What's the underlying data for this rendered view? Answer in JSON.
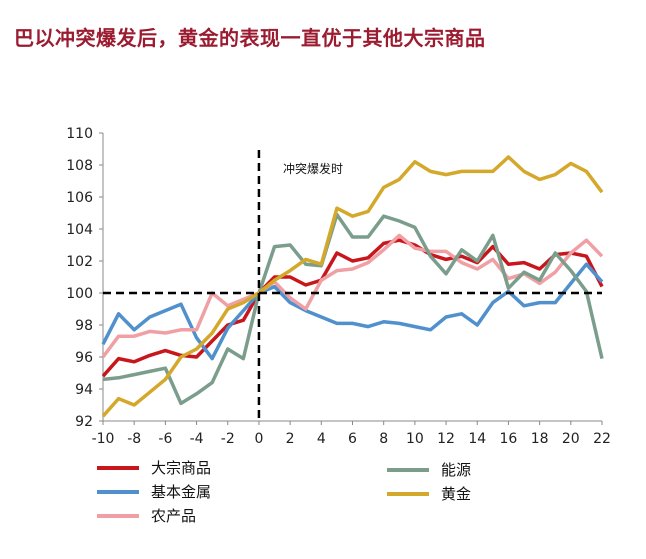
{
  "title": "巴以冲突爆发后，黄金的表现一直优于其他大宗商品",
  "chart_data": {
    "type": "line",
    "title": "巴以冲突爆发后，黄金的表现一直优于其他大宗商品",
    "annotation": "冲突爆发时",
    "x": [
      -10,
      -9,
      -8,
      -7,
      -6,
      -5,
      -4,
      -3,
      -2,
      -1,
      0,
      1,
      2,
      3,
      4,
      5,
      6,
      7,
      8,
      9,
      10,
      11,
      12,
      13,
      14,
      15,
      16,
      17,
      18,
      19,
      20,
      21,
      22
    ],
    "xlim": [
      -10,
      22
    ],
    "ylim": [
      92,
      110
    ],
    "xticks": [
      "-10",
      "-8",
      "-6",
      "-4",
      "-2",
      "0",
      "2",
      "4",
      "6",
      "8",
      "10",
      "12",
      "14",
      "16",
      "18",
      "20",
      "22"
    ],
    "yticks": [
      "92",
      "94",
      "96",
      "98",
      "100",
      "102",
      "104",
      "106",
      "108",
      "110"
    ],
    "grid": false,
    "reference_lines": {
      "x": 0,
      "y": 100
    },
    "legend_position": "bottom",
    "series": [
      {
        "name": "大宗商品",
        "color": "#c8161d",
        "values": [
          94.8,
          95.9,
          95.7,
          96.1,
          96.4,
          96.1,
          96.0,
          97.0,
          98.0,
          98.3,
          100,
          101.0,
          101.0,
          100.5,
          100.8,
          102.5,
          102.0,
          102.2,
          103.1,
          103.3,
          103.0,
          102.4,
          102.1,
          102.3,
          101.9,
          102.9,
          101.8,
          101.9,
          101.5,
          102.4,
          102.5,
          102.3,
          100.4
        ]
      },
      {
        "name": "基本金属",
        "color": "#4f90cd",
        "values": [
          96.8,
          98.7,
          97.7,
          98.5,
          98.9,
          99.3,
          97.2,
          95.9,
          97.8,
          98.9,
          100,
          100.4,
          99.4,
          98.9,
          98.5,
          98.1,
          98.1,
          97.9,
          98.2,
          98.1,
          97.9,
          97.7,
          98.5,
          98.7,
          98.0,
          99.4,
          100.1,
          99.2,
          99.4,
          99.4,
          100.6,
          101.8,
          100.7
        ]
      },
      {
        "name": "农产品",
        "color": "#f0a0a4",
        "values": [
          96.0,
          97.3,
          97.3,
          97.6,
          97.5,
          97.7,
          97.7,
          100.0,
          99.2,
          99.6,
          100,
          100.7,
          99.7,
          99.0,
          100.8,
          101.4,
          101.5,
          101.9,
          102.7,
          103.6,
          102.8,
          102.6,
          102.6,
          101.9,
          101.5,
          102.1,
          100.9,
          101.2,
          100.6,
          101.3,
          102.5,
          103.3,
          102.3
        ]
      },
      {
        "name": "能源",
        "color": "#7b9e8c",
        "values": [
          94.6,
          94.7,
          94.9,
          95.1,
          95.3,
          93.1,
          93.7,
          94.4,
          96.5,
          95.9,
          100,
          102.9,
          103.0,
          101.8,
          101.7,
          104.9,
          103.5,
          103.5,
          104.8,
          104.5,
          104.1,
          102.3,
          101.2,
          102.7,
          102.0,
          103.6,
          100.3,
          101.3,
          100.8,
          102.5,
          101.4,
          100.1,
          95.9
        ]
      },
      {
        "name": "黄金",
        "color": "#d4a82a",
        "values": [
          92.3,
          93.4,
          93.0,
          93.8,
          94.6,
          96.0,
          96.5,
          97.5,
          99.0,
          99.4,
          100,
          100.8,
          101.4,
          102.1,
          101.8,
          105.3,
          104.8,
          105.1,
          106.6,
          107.1,
          108.2,
          107.6,
          107.4,
          107.6,
          107.6,
          107.6,
          108.5,
          107.6,
          107.1,
          107.4,
          108.1,
          107.6,
          106.3
        ]
      }
    ]
  }
}
